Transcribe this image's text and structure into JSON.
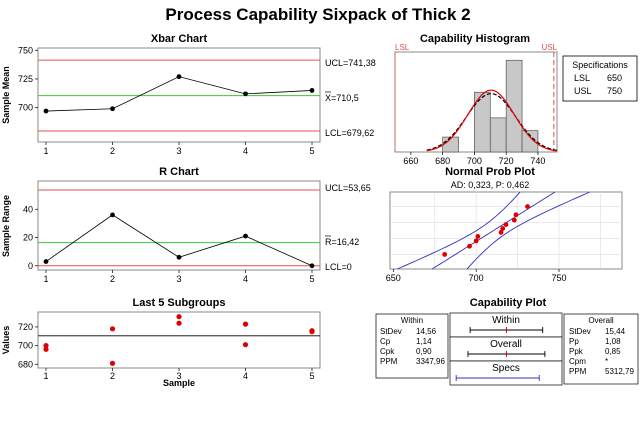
{
  "title": "Process Capability Sixpack of Thick 2",
  "colors": {
    "limit": "#e05050",
    "center": "#33cc33",
    "point": "#e00000",
    "bar": "#c8c8c8",
    "fit": "#000000",
    "blue": "#3030c0"
  },
  "chart_data": [
    {
      "type": "line",
      "id": "xbar",
      "title": "Xbar Chart",
      "xlabel": "",
      "ylabel": "Sample Mean",
      "x": [
        1,
        2,
        3,
        4,
        5
      ],
      "values": [
        697,
        699,
        727,
        712,
        715
      ],
      "ylim": [
        670,
        752
      ],
      "yticks": [
        700,
        725,
        750
      ],
      "limits": {
        "ucl": 741.38,
        "center": 710.5,
        "lcl": 679.62
      },
      "labels": {
        "ucl": "UCL=741,38",
        "center": "X=710,5",
        "lcl": "LCL=679,62"
      }
    },
    {
      "type": "line",
      "id": "rchart",
      "title": "R Chart",
      "xlabel": "",
      "ylabel": "Sample Range",
      "x": [
        1,
        2,
        3,
        4,
        5
      ],
      "values": [
        3,
        36,
        6,
        21,
        0
      ],
      "ylim": [
        -3,
        60
      ],
      "yticks": [
        0,
        20,
        40
      ],
      "limits": {
        "ucl": 53.65,
        "center": 16.42,
        "lcl": 0
      },
      "labels": {
        "ucl": "UCL=53,65",
        "center": "R=16,42",
        "lcl": "LCL=0"
      }
    },
    {
      "type": "scatter",
      "id": "last5",
      "title": "Last 5 Subgroups",
      "xlabel": "Sample",
      "ylabel": "Values",
      "mean": 710.5,
      "points": [
        [
          1,
          700
        ],
        [
          1,
          696
        ],
        [
          2,
          718
        ],
        [
          2,
          681
        ],
        [
          3,
          731
        ],
        [
          3,
          724
        ],
        [
          4,
          723
        ],
        [
          4,
          701
        ],
        [
          5,
          716
        ],
        [
          5,
          715
        ]
      ],
      "ylim": [
        676,
        736
      ],
      "yticks": [
        680,
        700,
        720
      ]
    },
    {
      "type": "bar",
      "id": "histogram",
      "title": "Capability Histogram",
      "bins": [
        [
          680,
          690,
          7
        ],
        [
          690,
          700,
          0
        ],
        [
          700,
          710,
          28
        ],
        [
          710,
          720,
          16
        ],
        [
          720,
          730,
          43
        ],
        [
          730,
          740,
          10
        ]
      ],
      "bin_max": 45,
      "xlim": [
        650,
        752
      ],
      "xticks": [
        660,
        680,
        700,
        720,
        740
      ],
      "lsl": 650,
      "usl": 750,
      "lsl_label": "LSL",
      "usl_label": "USL",
      "curve": {
        "mean": 710.5,
        "sd_within": 14.56,
        "sd_overall": 15.44
      },
      "specifications": {
        "title": "Specifications",
        "rows": [
          [
            "LSL",
            "650"
          ],
          [
            "USL",
            "750"
          ]
        ]
      }
    },
    {
      "type": "scatter",
      "id": "normprob",
      "title": "Normal Prob Plot",
      "subtitle": "AD: 0,323, P: 0,462",
      "points": [
        [
          681,
          0.068
        ],
        [
          696,
          0.163
        ],
        [
          700,
          0.259
        ],
        [
          701,
          0.356
        ],
        [
          715,
          0.452
        ],
        [
          716,
          0.548
        ],
        [
          718,
          0.644
        ],
        [
          723,
          0.741
        ],
        [
          724,
          0.837
        ],
        [
          731,
          0.932
        ]
      ],
      "xlim": [
        648,
        788
      ],
      "xticks": [
        650,
        700,
        750
      ],
      "fit": {
        "mean": 710.5,
        "sd": 15.44
      }
    },
    {
      "type": "line",
      "id": "capplot",
      "title": "Capability Plot",
      "within": {
        "title": "Within",
        "rows": [
          [
            "StDev",
            "14,56"
          ],
          [
            "Cp",
            "1,14"
          ],
          [
            "Cpk",
            "0,90"
          ],
          [
            "PPM",
            "3347,96"
          ]
        ]
      },
      "overall": {
        "title": "Overall",
        "rows": [
          [
            "StDev",
            "15,44"
          ],
          [
            "Pp",
            "1,08"
          ],
          [
            "Ppk",
            "0,85"
          ],
          [
            "Cpm",
            "*"
          ],
          [
            "PPM",
            "5312,79"
          ]
        ]
      },
      "bars": [
        {
          "label": "Within",
          "mean": 710.5,
          "sd": 14.56
        },
        {
          "label": "Overall",
          "mean": 710.5,
          "sd": 15.44
        },
        {
          "label": "Specs",
          "low": 650,
          "high": 750
        }
      ],
      "scale": [
        645,
        775
      ]
    }
  ]
}
